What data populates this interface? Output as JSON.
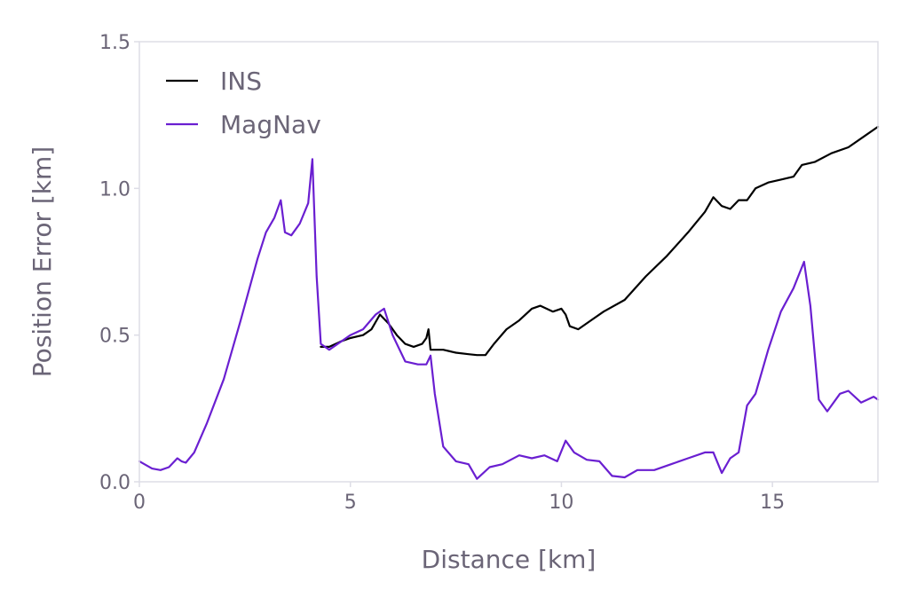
{
  "chart_data": {
    "type": "line",
    "title": "",
    "xlabel": "Distance [km]",
    "ylabel": "Position Error [km]",
    "xlim": [
      0,
      17.5
    ],
    "ylim": [
      0,
      1.5
    ],
    "x_ticks": [
      "0",
      "5",
      "10",
      "15"
    ],
    "y_ticks": [
      "0.0",
      "0.5",
      "1.0",
      "1.5"
    ],
    "grid": false,
    "legend_position": "top-left",
    "series": [
      {
        "name": "INS",
        "color": "#000000",
        "x": [
          4.3,
          4.5,
          4.8,
          5.0,
          5.3,
          5.5,
          5.7,
          5.9,
          6.1,
          6.3,
          6.5,
          6.7,
          6.8,
          6.85,
          6.9,
          7.0,
          7.2,
          7.5,
          7.8,
          8.0,
          8.2,
          8.4,
          8.7,
          9.0,
          9.3,
          9.5,
          9.8,
          10.0,
          10.1,
          10.2,
          10.4,
          10.7,
          11.0,
          11.5,
          12.0,
          12.5,
          13.0,
          13.4,
          13.6,
          13.8,
          14.0,
          14.2,
          14.4,
          14.6,
          14.9,
          15.2,
          15.5,
          15.7,
          16.0,
          16.4,
          16.8,
          17.2,
          17.5
        ],
        "y": [
          0.46,
          0.46,
          0.48,
          0.49,
          0.5,
          0.52,
          0.57,
          0.54,
          0.5,
          0.47,
          0.46,
          0.47,
          0.49,
          0.52,
          0.45,
          0.45,
          0.45,
          0.44,
          0.435,
          0.432,
          0.432,
          0.47,
          0.52,
          0.55,
          0.59,
          0.6,
          0.58,
          0.59,
          0.57,
          0.53,
          0.52,
          0.55,
          0.58,
          0.62,
          0.7,
          0.77,
          0.85,
          0.92,
          0.97,
          0.94,
          0.93,
          0.96,
          0.96,
          1.0,
          1.02,
          1.03,
          1.04,
          1.08,
          1.09,
          1.12,
          1.14,
          1.18,
          1.21
        ]
      },
      {
        "name": "MagNav",
        "color": "#6a1fd1",
        "x": [
          0,
          0.3,
          0.5,
          0.7,
          0.9,
          1.0,
          1.1,
          1.3,
          1.6,
          2.0,
          2.4,
          2.8,
          3.0,
          3.2,
          3.35,
          3.45,
          3.6,
          3.8,
          4.0,
          4.1,
          4.2,
          4.3,
          4.5,
          4.8,
          5.0,
          5.3,
          5.6,
          5.8,
          6.0,
          6.3,
          6.6,
          6.8,
          6.9,
          7.0,
          7.2,
          7.5,
          7.8,
          8.0,
          8.3,
          8.6,
          9.0,
          9.3,
          9.6,
          9.9,
          10.1,
          10.3,
          10.6,
          10.9,
          11.2,
          11.5,
          11.8,
          12.2,
          12.6,
          13.0,
          13.4,
          13.6,
          13.8,
          14.0,
          14.2,
          14.4,
          14.6,
          14.9,
          15.2,
          15.5,
          15.75,
          15.9,
          16.1,
          16.3,
          16.6,
          16.8,
          17.1,
          17.4,
          17.5
        ],
        "y": [
          0.07,
          0.045,
          0.04,
          0.05,
          0.08,
          0.07,
          0.065,
          0.1,
          0.2,
          0.35,
          0.55,
          0.76,
          0.85,
          0.9,
          0.96,
          0.85,
          0.84,
          0.88,
          0.95,
          1.1,
          0.7,
          0.47,
          0.45,
          0.48,
          0.5,
          0.52,
          0.57,
          0.59,
          0.5,
          0.41,
          0.4,
          0.4,
          0.43,
          0.3,
          0.12,
          0.07,
          0.06,
          0.01,
          0.05,
          0.06,
          0.09,
          0.08,
          0.09,
          0.07,
          0.14,
          0.1,
          0.075,
          0.07,
          0.02,
          0.015,
          0.04,
          0.04,
          0.06,
          0.08,
          0.1,
          0.1,
          0.03,
          0.08,
          0.1,
          0.26,
          0.3,
          0.45,
          0.58,
          0.66,
          0.75,
          0.6,
          0.28,
          0.24,
          0.3,
          0.31,
          0.27,
          0.29,
          0.28
        ]
      }
    ]
  }
}
